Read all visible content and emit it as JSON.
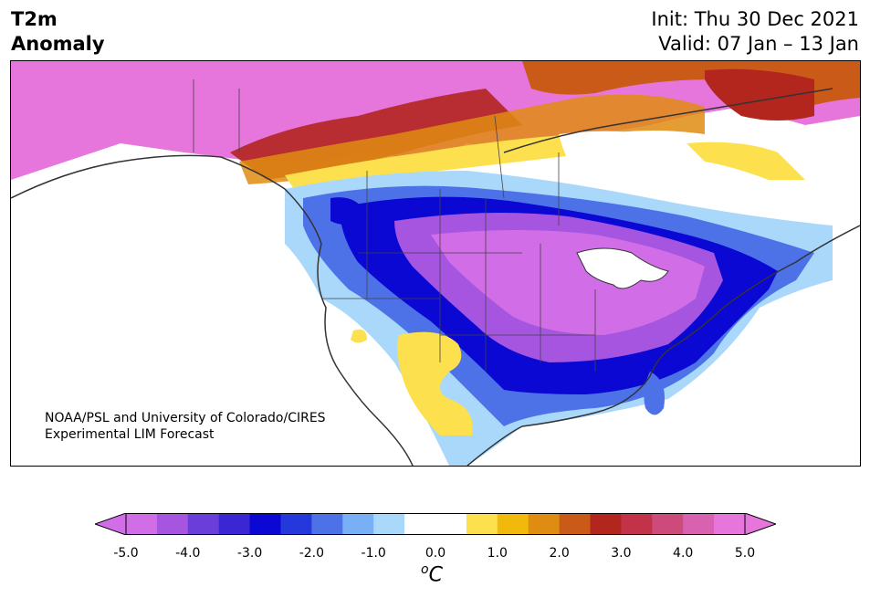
{
  "header": {
    "title_line1": "T2m",
    "title_line2": "Anomaly",
    "init": "Init: Thu 30 Dec 2021",
    "valid": "Valid: 07 Jan – 13 Jan"
  },
  "credit": {
    "line1": "NOAA/PSL and University of Colorado/CIRES",
    "line2": "Experimental LIM Forecast"
  },
  "colorbar": {
    "unit_base": "C",
    "unit_sup": "o",
    "ticks": [
      "-5.0",
      "-4.0",
      "-3.0",
      "-2.0",
      "-1.0",
      "0.0",
      "1.0",
      "2.0",
      "3.0",
      "4.0",
      "5.0"
    ],
    "colors": [
      "#d16de6",
      "#a555e0",
      "#6a3ed9",
      "#3a26d2",
      "#0a08d2",
      "#2438dc",
      "#4d72e8",
      "#79b0f5",
      "#a9d8fb",
      "#ffffff",
      "#ffffff",
      "#fde04d",
      "#f2b90d",
      "#df8c12",
      "#c95a18",
      "#b3261e",
      "#c23248",
      "#cc4b7a",
      "#d861b0",
      "#e675dc"
    ],
    "under_color": "#d16de6",
    "over_color": "#e675dc"
  }
}
